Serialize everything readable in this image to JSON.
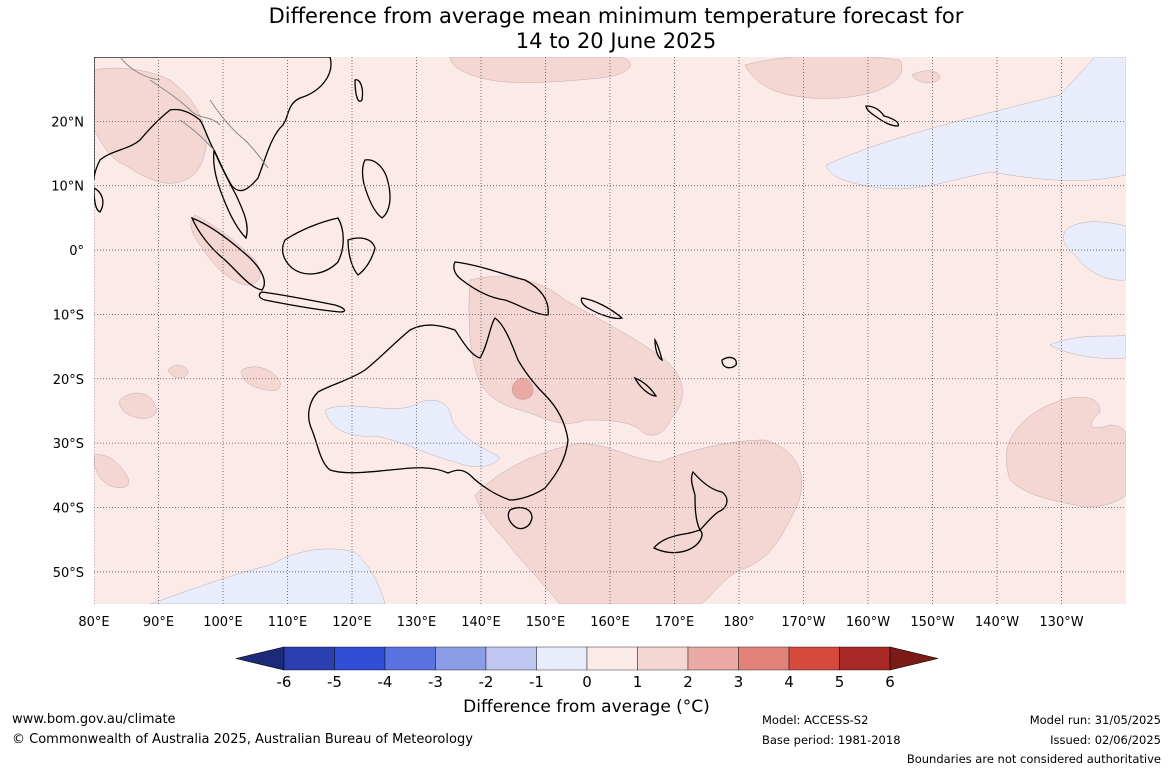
{
  "title_line1": "Difference from average mean minimum temperature forecast for",
  "title_line2": "14 to 20 June 2025",
  "map": {
    "lon_range": [
      80,
      240
    ],
    "lat_range": [
      -55,
      30
    ],
    "lon_ticks": [
      {
        "value": 80,
        "label": "80°E"
      },
      {
        "value": 90,
        "label": "90°E"
      },
      {
        "value": 100,
        "label": "100°E"
      },
      {
        "value": 110,
        "label": "110°E"
      },
      {
        "value": 120,
        "label": "120°E"
      },
      {
        "value": 130,
        "label": "130°E"
      },
      {
        "value": 140,
        "label": "140°E"
      },
      {
        "value": 150,
        "label": "150°E"
      },
      {
        "value": 160,
        "label": "160°E"
      },
      {
        "value": 170,
        "label": "170°E"
      },
      {
        "value": 180,
        "label": "180°"
      },
      {
        "value": 190,
        "label": "170°W"
      },
      {
        "value": 200,
        "label": "160°W"
      },
      {
        "value": 210,
        "label": "150°W"
      },
      {
        "value": 220,
        "label": "140°W"
      },
      {
        "value": 230,
        "label": "130°W"
      }
    ],
    "lat_ticks": [
      {
        "value": 20,
        "label": "20°N"
      },
      {
        "value": 10,
        "label": "10°N"
      },
      {
        "value": 0,
        "label": "0°"
      },
      {
        "value": -10,
        "label": "10°S"
      },
      {
        "value": -20,
        "label": "20°S"
      },
      {
        "value": -30,
        "label": "30°S"
      },
      {
        "value": -40,
        "label": "40°S"
      },
      {
        "value": -50,
        "label": "50°S"
      }
    ],
    "gridlines": true,
    "background_category": "0 to 1 °C",
    "colors": {
      "ocean_default": "#fbeae8",
      "warm_1_2": "#f4d6d3",
      "warm_2_3": "#eaa9a2",
      "cool_0_m1": "#e8ecfb",
      "coastline": "#000000",
      "borders": "#888888"
    }
  },
  "colorbar": {
    "tick_labels": [
      "-6",
      "-5",
      "-4",
      "-3",
      "-2",
      "-1",
      "0",
      "1",
      "2",
      "3",
      "4",
      "5",
      "6"
    ],
    "colors": [
      "#1c2a7a",
      "#2b3fb0",
      "#2f4fd8",
      "#5a73e0",
      "#8a9de6",
      "#c0c8f2",
      "#e8ecfb",
      "#fbeae8",
      "#f4d6d3",
      "#eaa9a2",
      "#e0827a",
      "#d64a3e",
      "#a82a26",
      "#7a1b18"
    ],
    "label": "Difference from average (°C)"
  },
  "footer": {
    "website": "www.bom.gov.au/climate",
    "copyright": "© Commonwealth of Australia 2025, Australian Bureau of Meteorology",
    "model": "Model: ACCESS-S2",
    "base_period": "Base period: 1981-2018",
    "model_run": "Model run: 31/05/2025",
    "issued": "Issued: 02/06/2025",
    "boundaries_note": "Boundaries are not considered authoritative"
  }
}
